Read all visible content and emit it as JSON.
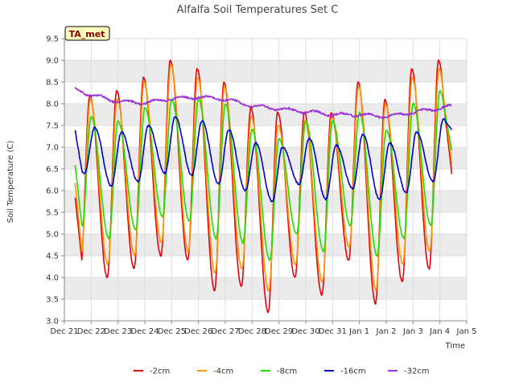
{
  "chart_data": {
    "type": "line",
    "title": "Alfalfa Soil Temperatures Set C",
    "xlabel": "Time",
    "ylabel": "Soil Temperature (C)",
    "badge": "TA_met",
    "ylim": [
      3.0,
      9.5
    ],
    "xlim": [
      "Dec 21",
      "Jan 5"
    ],
    "x_tick_labels": [
      "Dec 21",
      "Dec 22",
      "Dec 23",
      "Dec 24",
      "Dec 25",
      "Dec 26",
      "Dec 27",
      "Dec 28",
      "Dec 29",
      "Dec 30",
      "Dec 31",
      "Jan 1",
      "Jan 2",
      "Jan 3",
      "Jan 4",
      "Jan 5"
    ],
    "y_tick_labels": [
      "3.0",
      "3.5",
      "4.0",
      "4.5",
      "5.0",
      "5.5",
      "6.0",
      "6.5",
      "7.0",
      "7.5",
      "8.0",
      "8.5",
      "9.0",
      "9.5"
    ],
    "grid": true,
    "legend_position": "bottom",
    "x": [
      "Dec 21",
      "Dec 22",
      "Dec 23",
      "Dec 24",
      "Dec 25",
      "Dec 26",
      "Dec 27",
      "Dec 28",
      "Dec 29",
      "Dec 30",
      "Dec 31",
      "Jan 1",
      "Jan 2",
      "Jan 3",
      "Jan 4"
    ],
    "series": [
      {
        "name": "-2cm",
        "color": "#e8000b",
        "mins": [
          4.2,
          4.0,
          4.2,
          4.5,
          4.4,
          3.7,
          3.8,
          3.2,
          4.0,
          3.6,
          4.4,
          3.4,
          3.9,
          4.2
        ],
        "maxs": [
          8.2,
          8.3,
          8.6,
          9.0,
          8.8,
          8.5,
          7.9,
          7.8,
          7.8,
          7.8,
          8.5,
          8.1,
          8.8,
          9.0
        ],
        "first": 5.85,
        "last": 6.35
      },
      {
        "name": "-4cm",
        "color": "#ff9500",
        "mins": [
          4.5,
          4.3,
          4.5,
          4.8,
          4.6,
          4.1,
          4.2,
          3.7,
          4.3,
          3.9,
          4.7,
          3.7,
          4.3,
          4.6
        ],
        "maxs": [
          8.1,
          8.1,
          8.5,
          8.9,
          8.6,
          8.4,
          7.7,
          7.5,
          7.6,
          7.7,
          8.4,
          8.0,
          8.6,
          8.8
        ],
        "first": 6.2,
        "last": 6.6
      },
      {
        "name": "-8cm",
        "color": "#22dd00",
        "mins": [
          5.2,
          4.9,
          5.1,
          5.4,
          5.3,
          4.9,
          4.8,
          4.4,
          5.0,
          4.6,
          5.2,
          4.5,
          4.9,
          5.2
        ],
        "maxs": [
          7.7,
          7.6,
          7.9,
          8.1,
          8.1,
          8.0,
          7.4,
          7.2,
          7.6,
          7.6,
          7.8,
          7.4,
          8.0,
          8.3
        ],
        "first": 6.6,
        "last": 6.9
      },
      {
        "name": "-16cm",
        "color": "#0000cc",
        "mins": [
          6.4,
          6.1,
          6.2,
          6.4,
          6.35,
          6.15,
          6.0,
          5.75,
          6.15,
          5.8,
          6.05,
          5.8,
          5.95,
          6.2
        ],
        "maxs": [
          7.45,
          7.35,
          7.5,
          7.7,
          7.6,
          7.4,
          7.1,
          7.0,
          7.2,
          7.05,
          7.3,
          7.1,
          7.35,
          7.65
        ],
        "first": 7.4,
        "last": 7.4
      },
      {
        "name": "-32cm",
        "color": "#9b30d9",
        "daily": [
          8.42,
          8.2,
          8.05,
          8.02,
          8.12,
          8.15,
          8.1,
          7.95,
          7.88,
          7.82,
          7.75,
          7.75,
          7.7,
          7.8,
          7.9
        ],
        "last": 7.92
      }
    ]
  }
}
